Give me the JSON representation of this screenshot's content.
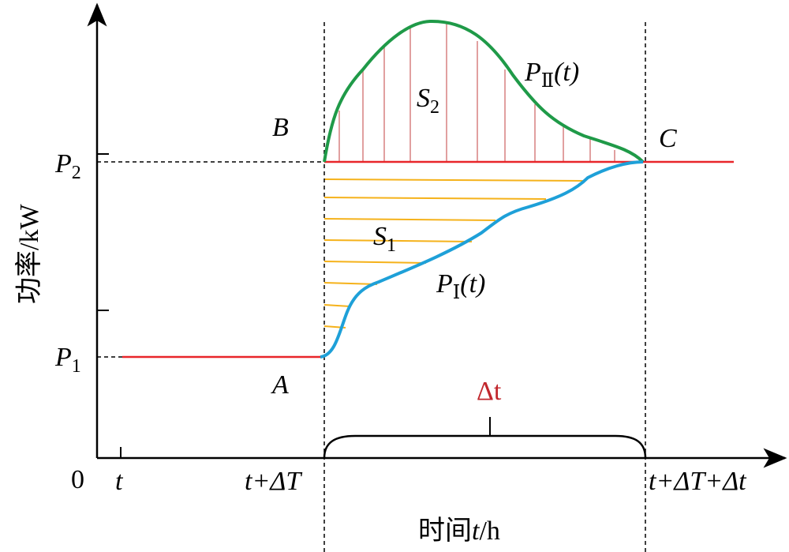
{
  "axes": {
    "y_label": "功率/kW",
    "x_label_prefix": "时间",
    "x_label_var": "t",
    "x_label_unit": "/h",
    "origin": "0"
  },
  "y_ticks": {
    "p2": "P",
    "p2_sub": "2",
    "p1": "P",
    "p1_sub": "1"
  },
  "x_ticks": {
    "t": "t",
    "t_dT": "t+ΔT",
    "t_dT_dt": "t+ΔT+Δt"
  },
  "points": {
    "a": "A",
    "b": "B",
    "c": "C"
  },
  "areas": {
    "s1": "S",
    "s1_sub": "1",
    "s2": "S",
    "s2_sub": "2"
  },
  "curves": {
    "p_I": "P",
    "p_I_sub": "Ⅰ",
    "p_I_arg": "(t)",
    "p_II": "P",
    "p_II_sub": "Ⅱ",
    "p_II_arg": "(t)"
  },
  "interval_label": "Δt",
  "colors": {
    "red": "#e8262a",
    "green": "#1f9a48",
    "blue": "#1ea0d8",
    "orange": "#f5b21b",
    "pink": "#e1a0a0",
    "interval": "#c1272d"
  }
}
